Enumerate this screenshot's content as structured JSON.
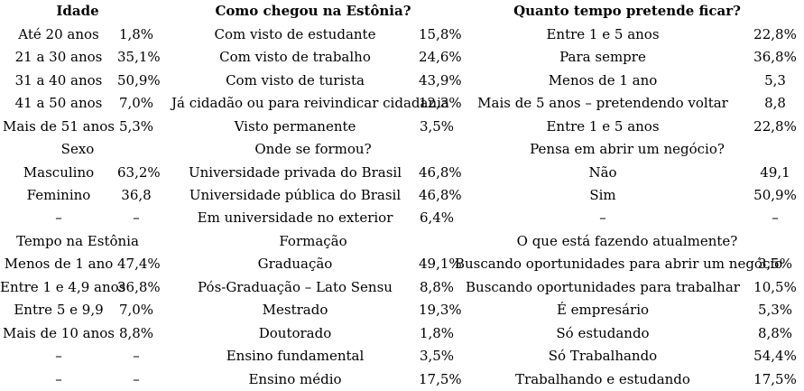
{
  "page": {
    "background_color": "#ffffff",
    "text_color": "#000000"
  },
  "table": {
    "columns": [
      {
        "sections": [
          {
            "header": "Idade",
            "bold": true,
            "rows": [
              {
                "label": "Até 20 anos",
                "value": "1,8%"
              },
              {
                "label": "21 a 30 anos",
                "value": "35,1%"
              },
              {
                "label": "31 a 40 anos",
                "value": "50,9%"
              },
              {
                "label": "41 a 50 anos",
                "value": "7,0%"
              },
              {
                "label": "Mais de 51 anos",
                "value": "5,3%"
              }
            ]
          },
          {
            "header": "Sexo",
            "bold": false,
            "rows": [
              {
                "label": "Masculino",
                "value": "63,2%"
              },
              {
                "label": "Feminino",
                "value": "36,8"
              },
              {
                "label": "–",
                "value": "–"
              }
            ]
          },
          {
            "header": "Tempo na Estônia",
            "bold": false,
            "rows": [
              {
                "label": "Menos de 1 ano",
                "value": "47,4%"
              },
              {
                "label": "Entre 1 e 4,9 anos",
                "value": "36,8%"
              },
              {
                "label": "Entre 5 e 9,9",
                "value": "7,0%"
              },
              {
                "label": "Mais de 10 anos",
                "value": "8,8%"
              },
              {
                "label": "–",
                "value": "–"
              },
              {
                "label": "–",
                "value": "–"
              }
            ]
          }
        ]
      },
      {
        "sections": [
          {
            "header": "Como chegou na Estônia?",
            "bold": true,
            "rows": [
              {
                "label": "Com visto de estudante",
                "value": "15,8%"
              },
              {
                "label": "Com visto de trabalho",
                "value": "24,6%"
              },
              {
                "label": "Com visto de turista",
                "value": "43,9%"
              },
              {
                "label": "Já cidadão ou para reivindicar cidadania",
                "value": "12,3%"
              },
              {
                "label": "Visto permanente",
                "value": "3,5%"
              }
            ]
          },
          {
            "header": "Onde se formou?",
            "bold": false,
            "rows": [
              {
                "label": "Universidade privada do Brasil",
                "value": "46,8%"
              },
              {
                "label": "Universidade pública do Brasil",
                "value": "46,8%"
              },
              {
                "label": "Em universidade no exterior",
                "value": "6,4%"
              }
            ]
          },
          {
            "header": "Formação",
            "bold": false,
            "rows": [
              {
                "label": "Graduação",
                "value": "49,1%"
              },
              {
                "label": "Pós-Graduação – Lato Sensu",
                "value": "8,8%"
              },
              {
                "label": "Mestrado",
                "value": "19,3%"
              },
              {
                "label": "Doutorado",
                "value": "1,8%"
              },
              {
                "label": "Ensino fundamental",
                "value": "3,5%"
              },
              {
                "label": "Ensino médio",
                "value": "17,5%"
              }
            ]
          }
        ]
      },
      {
        "sections": [
          {
            "header": "Quanto tempo pretende ficar?",
            "bold": true,
            "rows": [
              {
                "label": "Entre 1 e 5 anos",
                "value": "22,8%"
              },
              {
                "label": "Para sempre",
                "value": "36,8%"
              },
              {
                "label": "Menos de 1 ano",
                "value": "5,3"
              },
              {
                "label": "Mais de 5 anos – pretendendo voltar",
                "value": "8,8"
              },
              {
                "label": "Entre 1 e 5 anos",
                "value": "22,8%"
              }
            ]
          },
          {
            "header": "Pensa em abrir um negócio?",
            "bold": false,
            "rows": [
              {
                "label": "Não",
                "value": "49,1"
              },
              {
                "label": "Sim",
                "value": "50,9%"
              },
              {
                "label": "–",
                "value": "–"
              }
            ]
          },
          {
            "header": "O que está fazendo atualmente?",
            "bold": false,
            "rows": [
              {
                "label": "Buscando oportunidades para abrir um negócio",
                "value": "3,5%"
              },
              {
                "label": "Buscando oportunidades para trabalhar",
                "value": "10,5%"
              },
              {
                "label": "É empresário",
                "value": "5,3%"
              },
              {
                "label": "Só estudando",
                "value": "8,8%"
              },
              {
                "label": "Só Trabalhando",
                "value": "54,4%"
              },
              {
                "label": "Trabalhando e estudando",
                "value": "17,5%"
              }
            ]
          }
        ]
      }
    ]
  }
}
